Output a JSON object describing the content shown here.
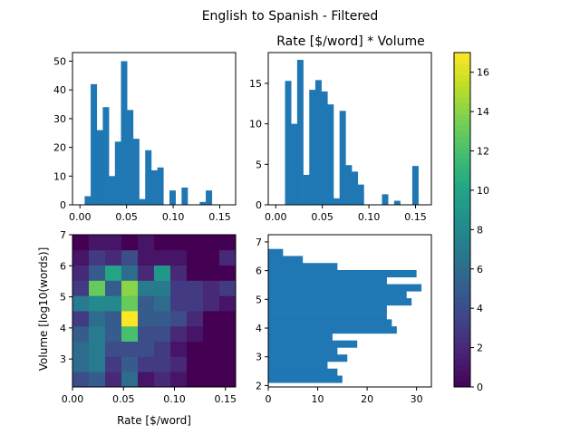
{
  "figure": {
    "suptitle": "English to Spanish - Filtered"
  },
  "chart_data": [
    {
      "type": "bar",
      "panel": "top-left",
      "title": "",
      "xlabel": "",
      "ylabel": "",
      "bin_width": 0.0065,
      "x": [
        0.005,
        0.0115,
        0.018,
        0.0245,
        0.031,
        0.0375,
        0.044,
        0.0505,
        0.057,
        0.0635,
        0.07,
        0.0765,
        0.083,
        0.0895,
        0.096,
        0.1025,
        0.109,
        0.1155,
        0.122,
        0.1285,
        0.135,
        0.1415,
        0.148
      ],
      "values": [
        3,
        42,
        26,
        34,
        10,
        22,
        50,
        33,
        23,
        2,
        19,
        12,
        13,
        0,
        5,
        0,
        6,
        0,
        0,
        1,
        5,
        0,
        0
      ],
      "xlim": [
        -0.008,
        0.167
      ],
      "ylim": [
        0,
        53
      ],
      "xticks": [
        "0.00",
        "0.05",
        "0.10",
        "0.15"
      ],
      "yticks": [
        "0",
        "10",
        "20",
        "30",
        "40",
        "50"
      ]
    },
    {
      "type": "bar",
      "panel": "top-right",
      "title": "Rate [$/word] * Volume",
      "xlabel": "",
      "ylabel": "",
      "bin_width": 0.0065,
      "x": [
        0.01,
        0.0165,
        0.023,
        0.0295,
        0.036,
        0.0425,
        0.049,
        0.0555,
        0.062,
        0.0685,
        0.075,
        0.0815,
        0.088,
        0.0945,
        0.101,
        0.1075,
        0.114,
        0.1205,
        0.127,
        0.1335,
        0.14,
        0.1465,
        0.153
      ],
      "values": [
        15.3,
        10,
        17.9,
        3.7,
        14.2,
        15.4,
        14,
        12.4,
        0.8,
        11.6,
        4.9,
        4.1,
        2.5,
        0,
        0,
        0,
        1.3,
        0,
        0.5,
        0,
        0,
        4.8,
        0
      ],
      "xlim": [
        -0.008,
        0.167
      ],
      "ylim": [
        0,
        18.8
      ],
      "xticks": [
        "0.00",
        "0.05",
        "0.10",
        "0.15"
      ],
      "yticks": [
        "0",
        "5",
        "10",
        "15"
      ]
    },
    {
      "type": "heatmap",
      "panel": "bottom-left",
      "title": "",
      "xlabel": "Rate [$/word]",
      "ylabel": "Volume [log10(words)]",
      "xlim": [
        0.0,
        0.16
      ],
      "ylim": [
        2.1,
        7.0
      ],
      "x_edges": [
        0.0,
        0.016,
        0.032,
        0.048,
        0.064,
        0.08,
        0.096,
        0.112,
        0.128,
        0.144,
        0.16
      ],
      "y_edges": [
        2.1,
        2.59,
        3.08,
        3.57,
        4.06,
        4.55,
        5.04,
        5.53,
        6.02,
        6.51,
        7.0
      ],
      "z_rows_bottom_to_top": [
        [
          4,
          5,
          2,
          6,
          1,
          2,
          1,
          0,
          0,
          0
        ],
        [
          6,
          7,
          3,
          5,
          3,
          3,
          2,
          0,
          0,
          0
        ],
        [
          6,
          7,
          4,
          4,
          4,
          3,
          1,
          0,
          0,
          0
        ],
        [
          5,
          7,
          5,
          12,
          4,
          4,
          2,
          1,
          0,
          0
        ],
        [
          3,
          6,
          5,
          17,
          5,
          5,
          4,
          2,
          0,
          0
        ],
        [
          7,
          8,
          8,
          13,
          5,
          6,
          3,
          3,
          2,
          1
        ],
        [
          3,
          13,
          5,
          14,
          7,
          7,
          3,
          3,
          2,
          3
        ],
        [
          2,
          5,
          10,
          6,
          2,
          9,
          2,
          0,
          0,
          0
        ],
        [
          1,
          3,
          2,
          4,
          1,
          1,
          1,
          0,
          0,
          2
        ],
        [
          0,
          1,
          1,
          0,
          1,
          0,
          0,
          0,
          0,
          0
        ]
      ],
      "vmin": 0,
      "vmax": 17,
      "colormap": "viridis",
      "xticks": [
        "0.00",
        "0.05",
        "0.10",
        "0.15"
      ],
      "yticks": [
        "3",
        "4",
        "5",
        "6",
        "7"
      ]
    },
    {
      "type": "bar",
      "orientation": "horizontal",
      "panel": "bottom-right",
      "title": "",
      "xlabel": "",
      "ylabel": "",
      "bin_height": 0.245,
      "y": [
        2.1,
        2.345,
        2.59,
        2.835,
        3.08,
        3.325,
        3.57,
        3.815,
        4.06,
        4.305,
        4.55,
        4.795,
        5.04,
        5.285,
        5.53,
        5.775,
        6.02,
        6.265
      ],
      "values": [
        15,
        14,
        12,
        16,
        14,
        18,
        13,
        26,
        25,
        24,
        24,
        29,
        28,
        31,
        24,
        30,
        14,
        7
      ],
      "tail": [
        {
          "y": 6.51,
          "value": 3
        }
      ],
      "xlim": [
        0,
        33
      ],
      "ylim": [
        1.95,
        7.25
      ],
      "xticks": [
        "0",
        "10",
        "20",
        "30"
      ],
      "yticks": [
        "2",
        "3",
        "4",
        "5",
        "6",
        "7"
      ]
    },
    {
      "type": "colorbar",
      "panel": "colorbar",
      "vmin": 0,
      "vmax": 17,
      "colormap": "viridis",
      "ticks": [
        "0",
        "2",
        "4",
        "6",
        "8",
        "10",
        "12",
        "14",
        "16"
      ]
    }
  ],
  "colors": {
    "bar": "#1f77b4"
  }
}
